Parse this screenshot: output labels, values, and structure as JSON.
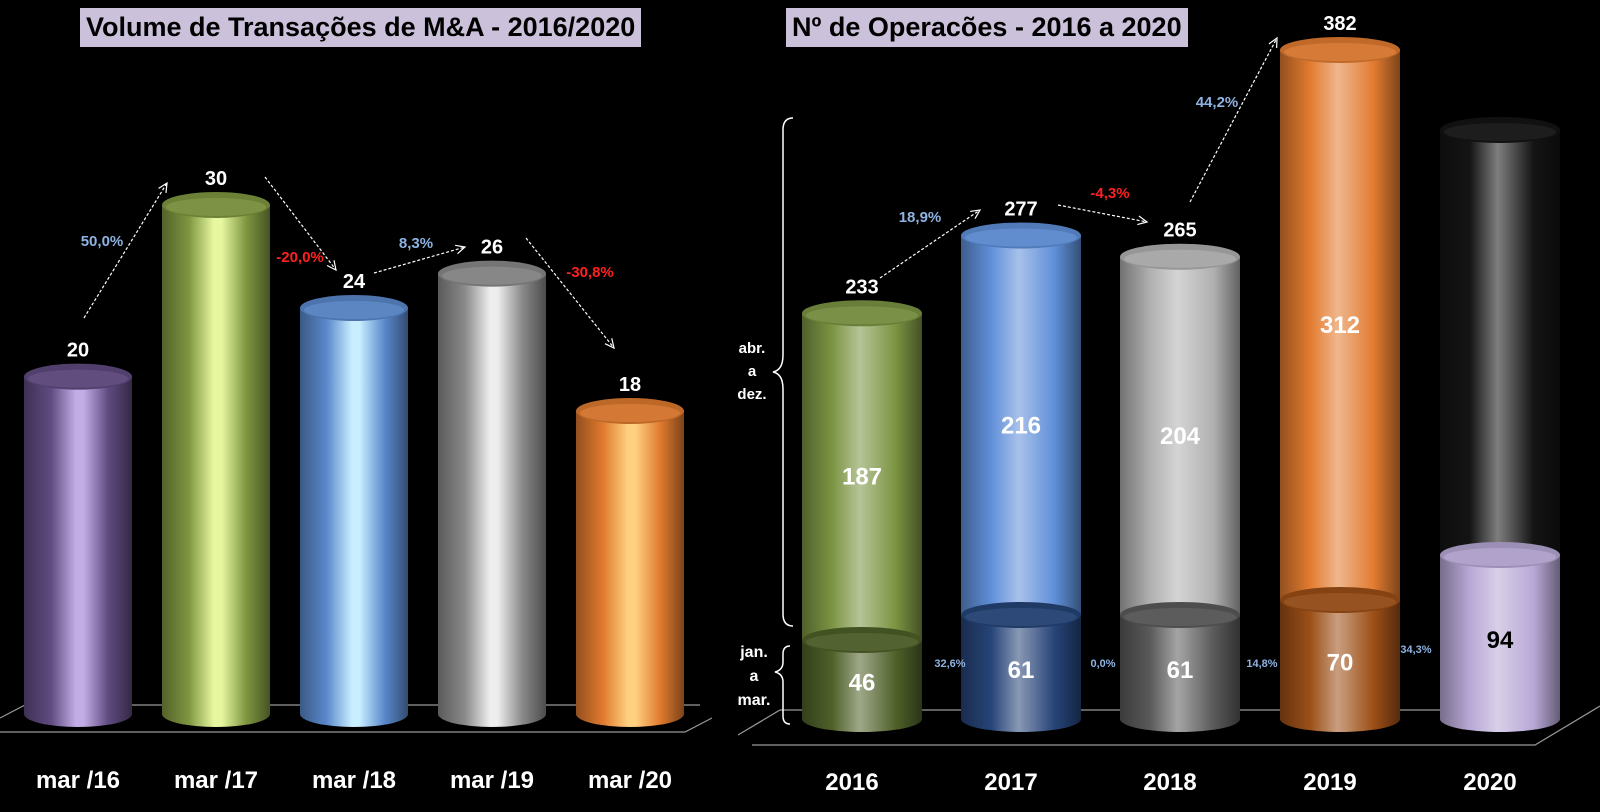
{
  "chart_data": [
    {
      "type": "bar",
      "style": "3d-cylinder",
      "title": "Volume de Transações de M&A - 2016/2020",
      "categories": [
        "mar /16",
        "mar /17",
        "mar /18",
        "mar /19",
        "mar /20"
      ],
      "values": [
        20,
        30,
        24,
        26,
        18
      ],
      "colors": [
        "#5f4b80",
        "#7f9640",
        "#5b89cc",
        "#8a8a8a",
        "#e07a2e"
      ],
      "highlights": [
        "#c2aee6",
        "#e6f7a0",
        "#c8eeff",
        "#eeeeee",
        "#ffd080"
      ],
      "variation_labels": [
        {
          "from": 0,
          "to": 1,
          "text": "50,0%",
          "color": "#8db3e2"
        },
        {
          "from": 1,
          "to": 2,
          "text": "-20,0%",
          "color": "#ff2020"
        },
        {
          "from": 2,
          "to": 3,
          "text": "8,3%",
          "color": "#8db3e2"
        },
        {
          "from": 3,
          "to": 4,
          "text": "-30,8%",
          "color": "#ff2020"
        }
      ],
      "ylim": [
        0,
        30
      ],
      "grid": false,
      "legend": "none",
      "xlabel": "",
      "ylabel": ""
    },
    {
      "type": "bar",
      "stacked": true,
      "style": "3d-cylinder",
      "title": "Nº de Operacões  - 2016 a 2020",
      "categories": [
        "2016",
        "2017",
        "2018",
        "2019",
        "2020"
      ],
      "series": [
        {
          "name": "jan. a mar.",
          "values": [
            46,
            61,
            61,
            70,
            94
          ]
        },
        {
          "name": "abr. a dez.",
          "values": [
            187,
            216,
            204,
            312,
            null
          ]
        }
      ],
      "totals": [
        233,
        277,
        265,
        382,
        null
      ],
      "lower_colors": [
        "#4f6129",
        "#264478",
        "#5a5a5a",
        "#9c4f17",
        "#b8a8d6"
      ],
      "upper_colors": [
        "#7b9442",
        "#5f8fd8",
        "#b0b0b0",
        "#e27b30",
        "#141414"
      ],
      "lower_label_colors": [
        "#ffffff",
        "#ffffff",
        "#ffffff",
        "#ffffff",
        "#000000"
      ],
      "total_variation_labels": [
        {
          "from": 0,
          "to": 1,
          "text": "18,9%",
          "color": "#8db3e2"
        },
        {
          "from": 1,
          "to": 2,
          "text": "-4,3%",
          "color": "#ff2020"
        },
        {
          "from": 2,
          "to": 3,
          "text": "44,2%",
          "color": "#8db3e2"
        }
      ],
      "q1_variation_labels": [
        {
          "between": [
            0,
            1
          ],
          "text": "32,6%"
        },
        {
          "between": [
            1,
            2
          ],
          "text": "0,0%"
        },
        {
          "between": [
            2,
            3
          ],
          "text": "14,8%"
        },
        {
          "between": [
            3,
            4
          ],
          "text": "34,3%"
        }
      ],
      "brace_labels": {
        "upper": [
          "abr.",
          "a",
          "dez."
        ],
        "lower": [
          "jan.",
          "a",
          "mar."
        ]
      },
      "ylim": [
        0,
        382
      ],
      "grid": false,
      "legend": "none",
      "xlabel": "",
      "ylabel": ""
    }
  ]
}
